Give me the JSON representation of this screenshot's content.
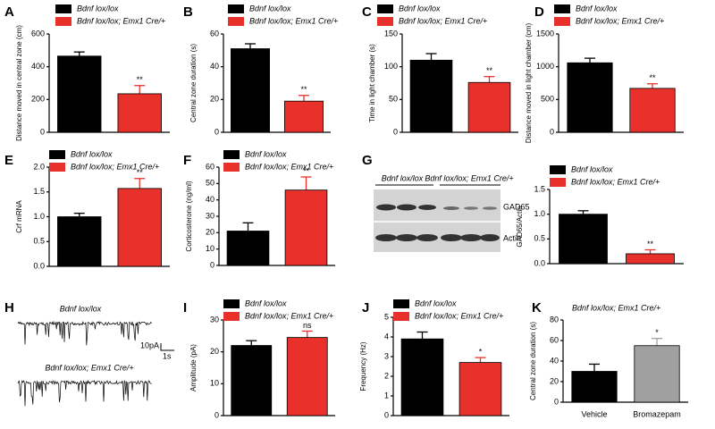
{
  "chart_data": [
    {
      "type": "bar",
      "panel": "A",
      "y_label": "Distance moved in central zone (cm)",
      "ylim": [
        0,
        600
      ],
      "yticks": [
        0,
        200,
        400,
        600
      ],
      "series": [
        {
          "name": "Bdnf lox/lox",
          "color": "#000000",
          "values": [
            465
          ],
          "errors": [
            25
          ]
        },
        {
          "name": "Bdnf lox/lox; Emx1 Cre/+",
          "color": "#e8312a",
          "values": [
            235
          ],
          "errors": [
            50
          ],
          "significance": "**"
        }
      ]
    },
    {
      "type": "bar",
      "panel": "B",
      "y_label": "Central zone duration (s)",
      "ylim": [
        0,
        60
      ],
      "yticks": [
        0,
        20,
        40,
        60
      ],
      "series": [
        {
          "name": "Bdnf lox/lox",
          "color": "#000000",
          "values": [
            51
          ],
          "errors": [
            3
          ]
        },
        {
          "name": "Bdnf lox/lox; Emx1 Cre/+",
          "color": "#e8312a",
          "values": [
            19
          ],
          "errors": [
            3.5
          ],
          "significance": "**"
        }
      ]
    },
    {
      "type": "bar",
      "panel": "C",
      "y_label": "Time in light chamber (s)",
      "ylim": [
        0,
        150
      ],
      "yticks": [
        0,
        50,
        100,
        150
      ],
      "series": [
        {
          "name": "Bdnf lox/lox",
          "color": "#000000",
          "values": [
            110
          ],
          "errors": [
            10
          ]
        },
        {
          "name": "Bdnf lox/lox; Emx1 Cre/+",
          "color": "#e8312a",
          "values": [
            76
          ],
          "errors": [
            9
          ],
          "significance": "**"
        }
      ]
    },
    {
      "type": "bar",
      "panel": "D",
      "y_label": "Distance moved in light chamber (cm)",
      "ylim": [
        0,
        1500
      ],
      "yticks": [
        0,
        500,
        1000,
        1500
      ],
      "series": [
        {
          "name": "Bdnf lox/lox",
          "color": "#000000",
          "values": [
            1060
          ],
          "errors": [
            70
          ]
        },
        {
          "name": "Bdnf lox/lox; Emx1 Cre/+",
          "color": "#e8312a",
          "values": [
            670
          ],
          "errors": [
            70
          ],
          "significance": "**"
        }
      ]
    },
    {
      "type": "bar",
      "panel": "E",
      "y_label": "Crf mRNA",
      "ylim": [
        0,
        2
      ],
      "yticks": [
        {
          "value": 0,
          "label": "0.0"
        },
        0.5,
        {
          "value": 1,
          "label": "1.0"
        },
        1.5,
        {
          "value": 2,
          "label": "2.0"
        }
      ],
      "series": [
        {
          "name": "Bdnf lox/lox",
          "color": "#000000",
          "values": [
            1.0
          ],
          "errors": [
            0.07
          ]
        },
        {
          "name": "Bdnf lox/lox; Emx1 Cre/+",
          "color": "#e8312a",
          "values": [
            1.57
          ],
          "errors": [
            0.2
          ],
          "significance": "**"
        }
      ]
    },
    {
      "type": "bar",
      "panel": "F",
      "y_label": "Corticosterone (ng/ml)",
      "ylim": [
        0,
        60
      ],
      "yticks": [
        0,
        10,
        20,
        30,
        40,
        50,
        60
      ],
      "series": [
        {
          "name": "Bdnf lox/lox",
          "color": "#000000",
          "values": [
            21
          ],
          "errors": [
            5
          ]
        },
        {
          "name": "Bdnf lox/lox; Emx1 Cre/+",
          "color": "#e8312a",
          "values": [
            46
          ],
          "errors": [
            8
          ],
          "significance": "**"
        }
      ]
    },
    {
      "type": "bar",
      "y_label": "GAD65/Actin",
      "ylim": [
        0,
        1.5
      ],
      "yticks": [
        {
          "value": 0,
          "label": "0.0"
        },
        0.5,
        {
          "value": 1,
          "label": "1.0"
        },
        1.5
      ],
      "series": [
        {
          "name": "Bdnf lox/lox",
          "color": "#000000",
          "values": [
            1.0
          ],
          "errors": [
            0.07
          ]
        },
        {
          "name": "Bdnf lox/lox; Emx1 Cre/+",
          "color": "#e8312a",
          "values": [
            0.2
          ],
          "errors": [
            0.08
          ],
          "significance": "**"
        }
      ]
    },
    {
      "type": "bar",
      "panel": "I",
      "y_label": "Amplitude (pA)",
      "ylim": [
        0,
        30
      ],
      "yticks": [
        0,
        10,
        20,
        30
      ],
      "series": [
        {
          "name": "Bdnf lox/lox",
          "color": "#000000",
          "values": [
            22
          ],
          "errors": [
            1.5
          ]
        },
        {
          "name": "Bdnf lox/lox; Emx1 Cre/+",
          "color": "#e8312a",
          "values": [
            24.5
          ],
          "errors": [
            2
          ],
          "significance": "ns"
        }
      ]
    },
    {
      "type": "bar",
      "panel": "J",
      "y_label": "Frequency (Hz)",
      "ylim": [
        0,
        5
      ],
      "yticks": [
        0,
        1,
        2,
        3,
        4,
        5
      ],
      "series": [
        {
          "name": "Bdnf lox/lox",
          "color": "#000000",
          "values": [
            3.9
          ],
          "errors": [
            0.35
          ]
        },
        {
          "name": "Bdnf lox/lox; Emx1 Cre/+",
          "color": "#e8312a",
          "values": [
            2.7
          ],
          "errors": [
            0.25
          ],
          "significance": "*"
        }
      ]
    },
    {
      "type": "catbar",
      "panel": "K",
      "y_label": "Central zone duration (s)",
      "subtitle": "Bdnf lox/lox; Emx1 Cre/+",
      "ylim": [
        0,
        80
      ],
      "yticks": [
        0,
        20,
        40,
        60,
        80
      ],
      "categories": [
        "Vehicle",
        "Bromazepam"
      ],
      "values": [
        30,
        55
      ],
      "errors": [
        7,
        7
      ],
      "colors": [
        "#000000",
        "#a0a0a0"
      ],
      "significance": [
        null,
        "*"
      ]
    }
  ],
  "blot": {
    "panel": "G",
    "groups": [
      "Bdnf lox/lox",
      "Bdnf lox/lox; Emx1 Cre/+"
    ],
    "bands": [
      "GAD65",
      "Actin"
    ]
  },
  "traces": {
    "panel": "H",
    "labels": [
      "Bdnf lox/lox",
      "Bdnf lox/lox; Emx1 Cre/+"
    ],
    "scale_y": "10pA",
    "scale_x": "1s"
  }
}
